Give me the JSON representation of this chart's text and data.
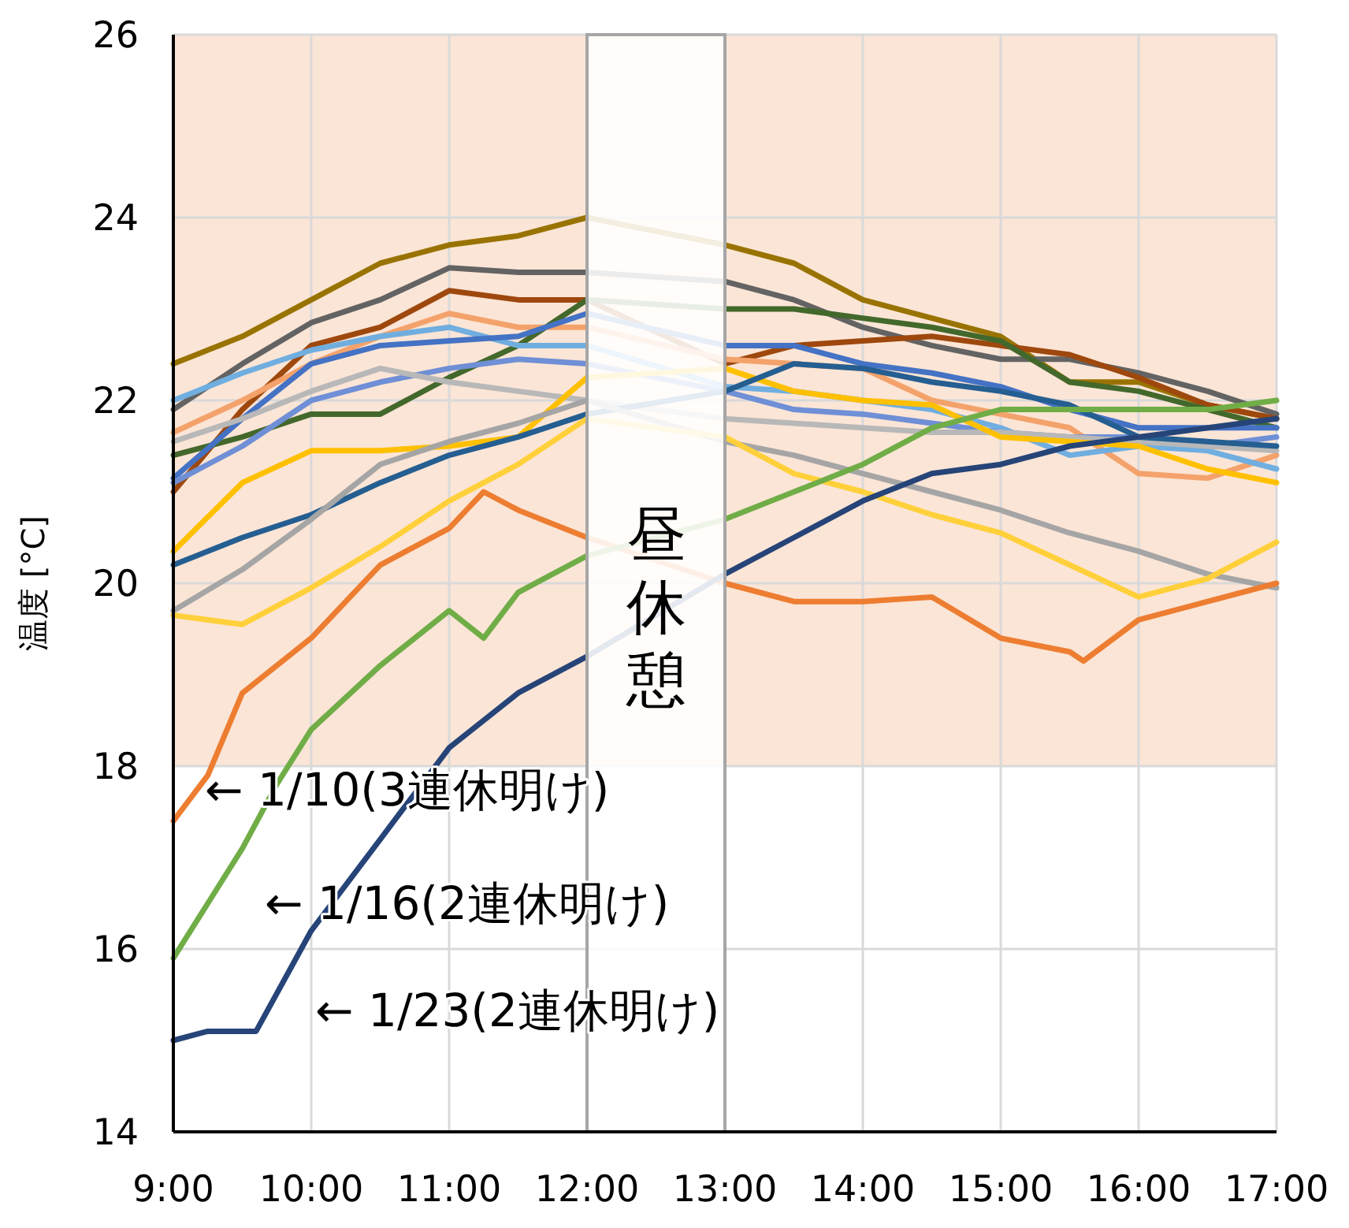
{
  "chart_data": {
    "type": "line",
    "ylabel": "温度 [°C]",
    "xlim": [
      9,
      17
    ],
    "ylim": [
      14,
      26
    ],
    "xticks": [
      {
        "value": 9,
        "label": "9:00"
      },
      {
        "value": 10,
        "label": "10:00"
      },
      {
        "value": 11,
        "label": "11:00"
      },
      {
        "value": 12,
        "label": "12:00"
      },
      {
        "value": 13,
        "label": "13:00"
      },
      {
        "value": 14,
        "label": "14:00"
      },
      {
        "value": 15,
        "label": "15:00"
      },
      {
        "value": 16,
        "label": "16:00"
      },
      {
        "value": 17,
        "label": "17:00"
      }
    ],
    "yticks": [
      14,
      16,
      18,
      20,
      22,
      24,
      26
    ],
    "grid": true,
    "x": [
      9,
      9.5,
      10,
      10.5,
      11,
      11.5,
      12,
      13,
      13.5,
      14,
      14.5,
      15,
      15.5,
      16,
      16.5,
      17
    ],
    "series": [
      {
        "color": "#997300",
        "values": [
          22.4,
          22.7,
          23.1,
          23.5,
          23.7,
          23.8,
          24.0,
          23.7,
          23.5,
          23.1,
          22.9,
          22.7,
          22.2,
          22.2,
          21.95,
          21.8
        ]
      },
      {
        "color": "#636363",
        "values": [
          21.9,
          22.4,
          22.85,
          23.1,
          23.45,
          23.4,
          23.4,
          23.3,
          23.1,
          22.8,
          22.6,
          22.45,
          22.45,
          22.3,
          22.1,
          21.85
        ]
      },
      {
        "color": "#9e480e",
        "values": [
          21.0,
          21.9,
          22.6,
          22.8,
          23.2,
          23.1,
          23.1,
          22.4,
          22.6,
          22.65,
          22.7,
          22.6,
          22.5,
          22.25,
          21.95,
          21.8
        ]
      },
      {
        "color": "#43682b",
        "values": [
          21.4,
          21.6,
          21.85,
          21.85,
          22.25,
          22.6,
          23.1,
          23.0,
          23.0,
          22.9,
          22.8,
          22.65,
          22.2,
          22.1,
          21.9,
          21.7
        ]
      },
      {
        "color": "#f4a26b",
        "values": [
          21.65,
          22.0,
          22.4,
          22.7,
          22.95,
          22.8,
          22.8,
          22.45,
          22.4,
          22.35,
          22.0,
          21.85,
          21.7,
          21.2,
          21.15,
          21.4
        ]
      },
      {
        "color": "#70aee0",
        "values": [
          22.0,
          22.3,
          22.55,
          22.7,
          22.8,
          22.6,
          22.6,
          22.15,
          22.1,
          22.0,
          21.9,
          21.7,
          21.4,
          21.5,
          21.45,
          21.25
        ]
      },
      {
        "color": "#4472c4",
        "values": [
          21.15,
          21.8,
          22.4,
          22.6,
          22.65,
          22.7,
          22.95,
          22.6,
          22.6,
          22.4,
          22.3,
          22.15,
          21.9,
          21.7,
          21.7,
          21.7
        ]
      },
      {
        "color": "#6f8fd6",
        "values": [
          21.1,
          21.5,
          22.0,
          22.2,
          22.35,
          22.45,
          22.4,
          22.1,
          21.9,
          21.85,
          21.75,
          21.65,
          21.6,
          21.6,
          21.5,
          21.6
        ]
      },
      {
        "color": "#b8b8b8",
        "values": [
          21.55,
          21.8,
          22.1,
          22.35,
          22.2,
          22.1,
          22.0,
          21.8,
          21.75,
          21.7,
          21.65,
          21.65,
          21.6,
          21.55,
          21.5,
          21.45
        ]
      },
      {
        "color": "#ffc000",
        "values": [
          20.35,
          21.1,
          21.45,
          21.45,
          21.5,
          21.6,
          22.25,
          22.35,
          22.1,
          22.0,
          21.95,
          21.6,
          21.55,
          21.5,
          21.25,
          21.1
        ]
      },
      {
        "color": "#255e91",
        "values": [
          20.2,
          20.5,
          20.75,
          21.1,
          21.4,
          21.6,
          21.85,
          22.1,
          22.4,
          22.35,
          22.2,
          22.1,
          21.95,
          21.6,
          21.55,
          21.5
        ]
      },
      {
        "color": "#a5a5a5",
        "values": [
          19.7,
          20.15,
          20.7,
          21.3,
          21.55,
          21.75,
          22.0,
          21.55,
          21.4,
          21.2,
          21.0,
          20.8,
          20.55,
          20.35,
          20.1,
          19.95
        ]
      },
      {
        "color": "#ffd03a",
        "values": [
          19.65,
          19.55,
          19.95,
          20.4,
          20.9,
          21.3,
          21.8,
          21.6,
          21.2,
          21.0,
          20.75,
          20.55,
          20.2,
          19.85,
          20.05,
          20.45
        ]
      },
      {
        "color": "#ed7d31",
        "x": [
          9,
          9.25,
          9.5,
          10,
          10.5,
          11,
          11.25,
          11.5,
          12,
          13,
          13.5,
          14,
          14.5,
          15,
          15.5,
          15.6,
          16,
          16.5,
          17
        ],
        "values": [
          17.4,
          17.9,
          18.8,
          19.4,
          20.2,
          20.6,
          21.0,
          20.8,
          20.5,
          20.0,
          19.8,
          19.8,
          19.85,
          19.4,
          19.25,
          19.15,
          19.6,
          19.8,
          20.0
        ]
      },
      {
        "color": "#70ad47",
        "x": [
          9,
          9.25,
          9.5,
          9.75,
          10,
          10.5,
          11,
          11.25,
          11.5,
          12,
          13,
          13.5,
          14,
          14.5,
          15,
          15.5,
          16,
          16.5,
          17
        ],
        "values": [
          15.9,
          16.5,
          17.1,
          17.8,
          18.4,
          19.1,
          19.7,
          19.4,
          19.9,
          20.3,
          20.7,
          21.0,
          21.3,
          21.7,
          21.9,
          21.9,
          21.9,
          21.9,
          22.0
        ]
      },
      {
        "color": "#264478",
        "x": [
          9,
          9.25,
          9.5,
          9.6,
          10,
          10.5,
          11,
          11.5,
          12,
          13,
          13.5,
          14,
          14.5,
          15,
          15.5,
          16,
          16.5,
          17
        ],
        "values": [
          15.0,
          15.1,
          15.1,
          15.1,
          16.2,
          17.2,
          18.2,
          18.8,
          19.2,
          20.1,
          20.5,
          20.9,
          21.2,
          21.3,
          21.5,
          21.6,
          21.7,
          21.8
        ]
      }
    ],
    "bands": [
      {
        "axis": "y",
        "from": 18,
        "to": 26,
        "color": "#fbe5d6"
      },
      {
        "axis": "x",
        "from": 12,
        "to": 13,
        "label": "昼休憩",
        "color": "#ffffff"
      }
    ],
    "annotations": [
      "← 1/10(3連休明け)",
      "← 1/16(2連休明け)",
      "← 1/23(2連休明け)"
    ]
  }
}
